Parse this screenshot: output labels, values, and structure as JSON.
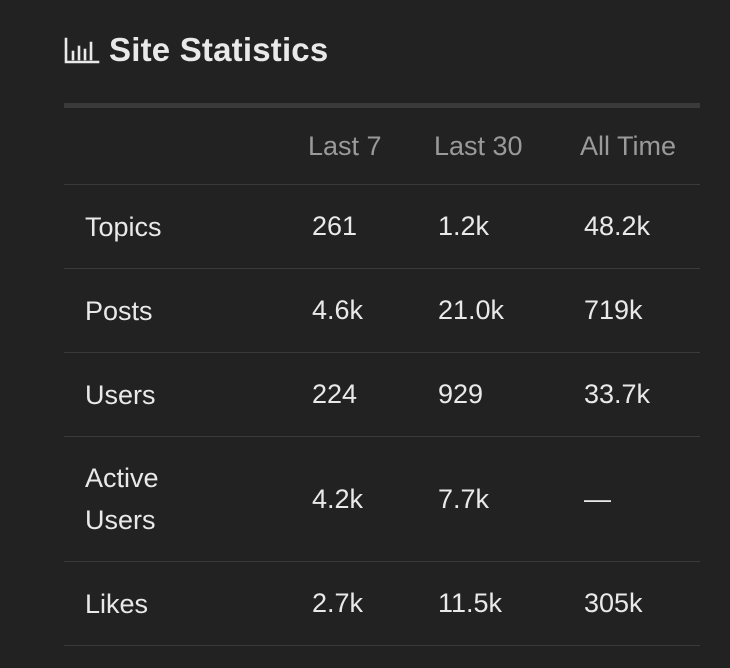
{
  "header": {
    "icon": "bar-chart-icon",
    "title": "Site Statistics"
  },
  "table": {
    "columns": [
      "",
      "Last 7",
      "Last 30",
      "All Time"
    ],
    "rows": [
      {
        "label": "Topics",
        "last_7": "261",
        "last_30": "1.2k",
        "all_time": "48.2k"
      },
      {
        "label": "Posts",
        "last_7": "4.6k",
        "last_30": "21.0k",
        "all_time": "719k"
      },
      {
        "label": "Users",
        "last_7": "224",
        "last_30": "929",
        "all_time": "33.7k"
      },
      {
        "label": "Active Users",
        "last_7": "4.2k",
        "last_30": "7.7k",
        "all_time": "—"
      },
      {
        "label": "Likes",
        "last_7": "2.7k",
        "last_30": "11.5k",
        "all_time": "305k"
      }
    ]
  },
  "colors": {
    "background": "#222222",
    "text": "#e9e9e9",
    "header_text": "#9a9a9a",
    "divider": "#3a3a3a"
  }
}
